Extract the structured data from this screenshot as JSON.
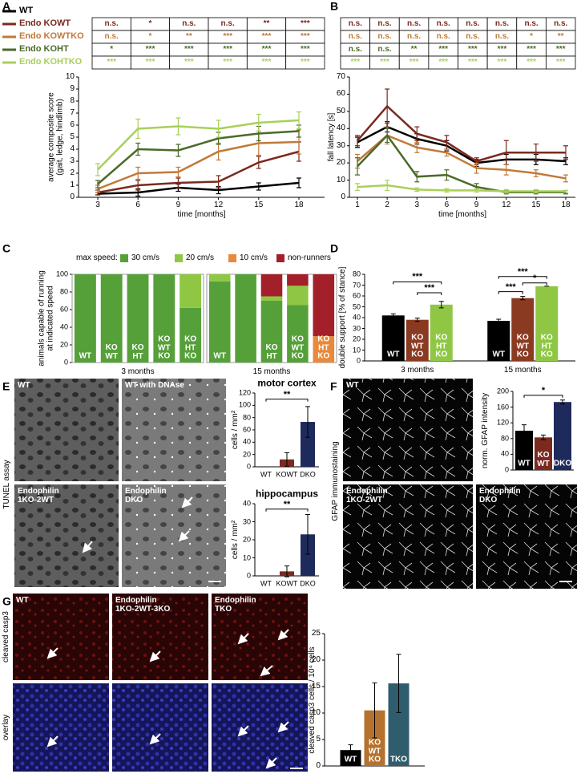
{
  "chart_data": [
    {
      "type": "line",
      "categories": [
        "3",
        "6",
        "9",
        "12",
        "15",
        "18"
      ],
      "xlabel": "time [months]",
      "ylabel": "average composite score\n(gait, ledge, hindlimb)",
      "ylim": [
        0,
        10
      ],
      "yticks": [
        0,
        1,
        2,
        3,
        4,
        5,
        6,
        7,
        8,
        9,
        10
      ],
      "series": [
        {
          "name": "WT",
          "color": "#000000",
          "values": [
            0.3,
            0.4,
            0.8,
            0.6,
            0.9,
            1.2
          ],
          "errors": [
            0.1,
            0.3,
            0.3,
            0.3,
            0.3,
            0.4
          ]
        },
        {
          "name": "Endo KOWT",
          "color": "#7a2a1e",
          "values": [
            0.4,
            1.0,
            1.2,
            1.3,
            2.9,
            3.8
          ],
          "errors": [
            0.2,
            0.4,
            0.4,
            0.5,
            0.5,
            0.8
          ]
        },
        {
          "name": "Endo KOWTKO",
          "color": "#c07a3a",
          "values": [
            0.7,
            2.0,
            2.1,
            3.8,
            4.5,
            4.6
          ],
          "errors": [
            0.3,
            0.5,
            0.4,
            0.7,
            1.0,
            1.0
          ]
        },
        {
          "name": "Endo KOHT",
          "color": "#4b6a2a",
          "values": [
            1.1,
            4.0,
            3.9,
            4.9,
            5.3,
            5.5
          ],
          "errors": [
            0.3,
            0.5,
            0.5,
            0.5,
            0.6,
            0.5
          ]
        },
        {
          "name": "Endo KOHTKO",
          "color": "#a8d05a",
          "values": [
            2.3,
            5.7,
            5.9,
            5.7,
            6.2,
            6.4
          ],
          "errors": [
            0.5,
            0.8,
            0.7,
            0.7,
            0.7,
            0.7
          ]
        }
      ],
      "significance": [
        [
          "n.s.",
          "*",
          "n.s.",
          "n.s.",
          "**",
          "***"
        ],
        [
          "n.s.",
          "*",
          "**",
          "***",
          "***",
          "***"
        ],
        [
          "*",
          "***",
          "***",
          "***",
          "***",
          "***"
        ],
        [
          "***",
          "***",
          "***",
          "***",
          "***",
          "***"
        ]
      ]
    },
    {
      "type": "line",
      "categories": [
        "1",
        "2",
        "3",
        "6",
        "9",
        "12",
        "15",
        "18"
      ],
      "xlabel": "time [months]",
      "ylabel": "fall latency [s]",
      "ylim": [
        0,
        70
      ],
      "yticks": [
        0,
        10,
        20,
        30,
        40,
        50,
        60,
        70
      ],
      "series": [
        {
          "color": "#000000",
          "values": [
            32,
            41,
            34,
            30,
            20,
            22,
            22,
            21
          ],
          "errors": [
            3,
            3,
            3,
            3,
            2,
            3,
            3,
            2
          ]
        },
        {
          "color": "#7a2a1e",
          "values": [
            33,
            53,
            37,
            32,
            21,
            26,
            26,
            26
          ],
          "errors": [
            3,
            10,
            4,
            4,
            2,
            7,
            5,
            4
          ]
        },
        {
          "color": "#c07a3a",
          "values": [
            21,
            36,
            29,
            26,
            17,
            16,
            14,
            11
          ],
          "errors": [
            4,
            5,
            3,
            2,
            3,
            3,
            2,
            2
          ]
        },
        {
          "color": "#4b6a2a",
          "values": [
            18,
            36,
            12,
            13,
            6,
            3,
            3,
            3
          ],
          "errors": [
            5,
            4,
            3,
            3,
            2,
            1,
            1,
            1
          ]
        },
        {
          "color": "#a8d05a",
          "values": [
            6,
            7,
            4.5,
            4,
            4,
            3.5,
            3.5,
            3.5
          ],
          "errors": [
            2,
            3,
            1,
            1,
            1,
            1,
            1,
            0.5
          ]
        }
      ],
      "significance": [
        [
          "n.s.",
          "n.s.",
          "n.s.",
          "n.s.",
          "n.s.",
          "n.s.",
          "n.s.",
          "n.s."
        ],
        [
          "n.s.",
          "n.s.",
          "n.s.",
          "n.s.",
          "n.s.",
          "n.s.",
          "*",
          "**"
        ],
        [
          "n.s.",
          "n.s.",
          "**",
          "***",
          "***",
          "***",
          "***",
          "***"
        ],
        [
          "***",
          "***",
          "***",
          "***",
          "***",
          "***",
          "***",
          "***"
        ]
      ]
    },
    {
      "type": "stacked_bar",
      "ylabel": "animals capable of running\nat indicated speed",
      "legend_title": "max speed:",
      "ylim": [
        0,
        100
      ],
      "yticks": [
        0,
        20,
        40,
        60,
        80,
        100
      ],
      "groups": [
        {
          "label": "3 months",
          "categories": [
            "WT",
            "KO\nWT",
            "KO\nHT",
            "KO\nWT\nKO",
            "KO\nHT\nKO"
          ]
        },
        {
          "label": "15 months",
          "categories": [
            "WT",
            null,
            "KO\nHT",
            "KO\nWT\nKO",
            "KO\nHT\nKO"
          ]
        }
      ],
      "series": [
        {
          "name": "30 cm/s",
          "color": "#56a03a",
          "values": [
            [
              100,
              100,
              100,
              100,
              62
            ],
            [
              92,
              100,
              70,
              65,
              0
            ]
          ]
        },
        {
          "name": "20 cm/s",
          "color": "#8fc744",
          "values": [
            [
              0,
              0,
              0,
              0,
              38
            ],
            [
              8,
              0,
              5,
              22,
              0
            ]
          ]
        },
        {
          "name": "10 cm/s",
          "color": "#e8893b",
          "values": [
            [
              0,
              0,
              0,
              0,
              0
            ],
            [
              0,
              0,
              0,
              0,
              30
            ]
          ]
        },
        {
          "name": "non-runners",
          "color": "#a3202a",
          "values": [
            [
              0,
              0,
              0,
              0,
              0
            ],
            [
              0,
              0,
              25,
              13,
              70
            ]
          ]
        }
      ]
    },
    {
      "type": "bar",
      "ylabel": "double support [% of stance]",
      "ylim": [
        0,
        80
      ],
      "yticks": [
        0,
        10,
        20,
        30,
        40,
        50,
        60,
        70,
        80
      ],
      "colors": [
        "#000000",
        "#8b3a22",
        "#8fc744"
      ],
      "groups": [
        {
          "label": "3 months",
          "categories": [
            "WT",
            "KO\nWT\nKO",
            "KO\nHT\nKO"
          ],
          "values": [
            42,
            38,
            52
          ],
          "errors": [
            1.5,
            1.5,
            3
          ]
        },
        {
          "label": "15 months",
          "categories": [
            "WT",
            "KO\nWT\nKO",
            "KO\nHT\nKO"
          ],
          "values": [
            37,
            58,
            69
          ],
          "errors": [
            1.5,
            1.5,
            0
          ]
        }
      ],
      "significance": [
        "***",
        "***",
        "***",
        "***",
        "*"
      ]
    },
    {
      "type": "bar",
      "title": "motor cortex",
      "ylabel": "cells / mm²",
      "ylim": [
        0,
        120
      ],
      "yticks": [
        0,
        20,
        40,
        60,
        80,
        100,
        120
      ],
      "categories": [
        "WT",
        "KOWT",
        "DKO"
      ],
      "values": [
        0,
        12,
        73
      ],
      "errors": [
        0,
        11,
        25
      ],
      "colors": [
        "#000000",
        "#7a2a1e",
        "#1f2a5c"
      ],
      "significance": [
        "**"
      ]
    },
    {
      "type": "bar",
      "title": "hippocampus",
      "ylabel": "cells / mm²",
      "ylim": [
        0,
        40
      ],
      "yticks": [
        0,
        10,
        20,
        30,
        40
      ],
      "categories": [
        "WT",
        "KOWT",
        "DKO"
      ],
      "values": [
        0,
        2.5,
        23
      ],
      "errors": [
        0,
        3,
        11
      ],
      "colors": [
        "#000000",
        "#7a2a1e",
        "#1f2a5c"
      ],
      "significance": [
        "**"
      ]
    },
    {
      "type": "bar",
      "ylabel": "norm. GFAP intensity",
      "ylim": [
        0,
        200
      ],
      "yticks": [
        0,
        40,
        80,
        120,
        160,
        200
      ],
      "categories": [
        "WT",
        "KO\nWT",
        "DKO"
      ],
      "values": [
        100,
        83,
        173
      ],
      "errors": [
        15,
        6,
        5
      ],
      "colors": [
        "#000000",
        "#7a2a1e",
        "#1f2a5c"
      ],
      "significance": [
        "*"
      ]
    },
    {
      "type": "bar",
      "ylabel": "cleaved casp3 cells / 10⁴ cells",
      "ylim": [
        0,
        25
      ],
      "yticks": [
        0,
        5,
        10,
        15,
        20,
        25
      ],
      "categories": [
        "WT",
        "KO\nWT\nKO",
        "TKO"
      ],
      "values": [
        3,
        10.5,
        15.6
      ],
      "errors": [
        1,
        5.2,
        5.5
      ],
      "colors": [
        "#000000",
        "#b5722e",
        "#2f5d6e"
      ]
    }
  ],
  "figure": {
    "panel_labels": [
      "A",
      "B",
      "C",
      "D",
      "E",
      "F",
      "G"
    ],
    "E": {
      "titles": [
        "WT",
        "WT with DNAse",
        "Endophilin\n1KO-2WT",
        "Endophilin\nDKO"
      ],
      "side": "TUNEL assay"
    },
    "F": {
      "titles": [
        "WT",
        "Endophilin\n1KO-2WT",
        "Endophilin\nDKO"
      ],
      "side": "GFAP immunostaining"
    },
    "G": {
      "titles": [
        "WT",
        "Endophilin\n1KO-2WT-3KO",
        "Endophilin\nTKO"
      ],
      "rows": [
        "cleaved casp3",
        "overlay"
      ]
    }
  }
}
